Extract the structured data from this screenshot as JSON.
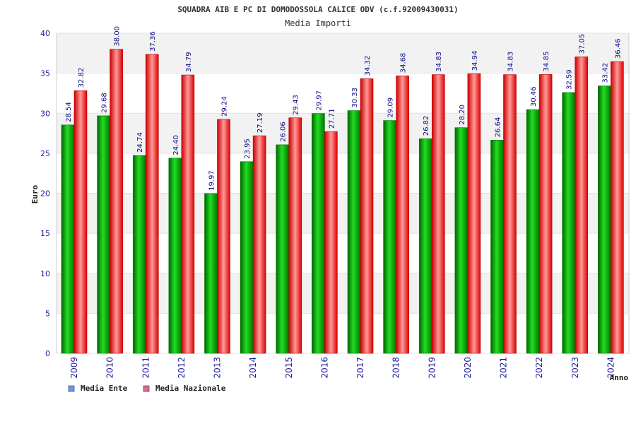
{
  "chart_data": {
    "type": "bar",
    "title": "SQUADRA AIB E PC DI DOMODOSSOLA CALICE ODV (c.f.92009430031)",
    "subtitle": "Media Importi",
    "xlabel": "Anno",
    "ylabel": "Euro",
    "ylim": [
      0,
      40
    ],
    "yticks": [
      0,
      5,
      10,
      15,
      20,
      25,
      30,
      35,
      40
    ],
    "grid": true,
    "legend_position": "bottom-left",
    "categories": [
      "2009",
      "2010",
      "2011",
      "2012",
      "2013",
      "2014",
      "2015",
      "2016",
      "2017",
      "2018",
      "2019",
      "2020",
      "2021",
      "2022",
      "2023",
      "2024"
    ],
    "series": [
      {
        "name": "Media Ente",
        "color": "#00aa00",
        "legend_color": "#6699ee",
        "values": [
          28.54,
          29.68,
          24.74,
          24.4,
          19.97,
          23.95,
          26.06,
          29.97,
          30.33,
          29.09,
          26.82,
          28.2,
          26.64,
          30.46,
          32.59,
          33.42
        ],
        "labels": [
          "28.54",
          "29.68",
          "24.74",
          "24.40",
          "19.97",
          "23.95",
          "26.06",
          "29.97",
          "30.33",
          "29.09",
          "26.82",
          "28.20",
          "26.64",
          "30.46",
          "32.59",
          "33.42"
        ]
      },
      {
        "name": "Media Nazionale",
        "color": "#ee1111",
        "legend_color": "#dd6699",
        "values": [
          32.82,
          38.0,
          37.36,
          34.79,
          29.24,
          27.19,
          29.43,
          27.71,
          34.32,
          34.68,
          34.83,
          34.94,
          34.83,
          34.85,
          37.05,
          36.46
        ],
        "labels": [
          "32.82",
          "38.00",
          "37.36",
          "34.79",
          "29.24",
          "27.19",
          "29.43",
          "27.71",
          "34.32",
          "34.68",
          "34.83",
          "34.94",
          "34.83",
          "34.85",
          "37.05",
          "36.46"
        ]
      }
    ]
  }
}
